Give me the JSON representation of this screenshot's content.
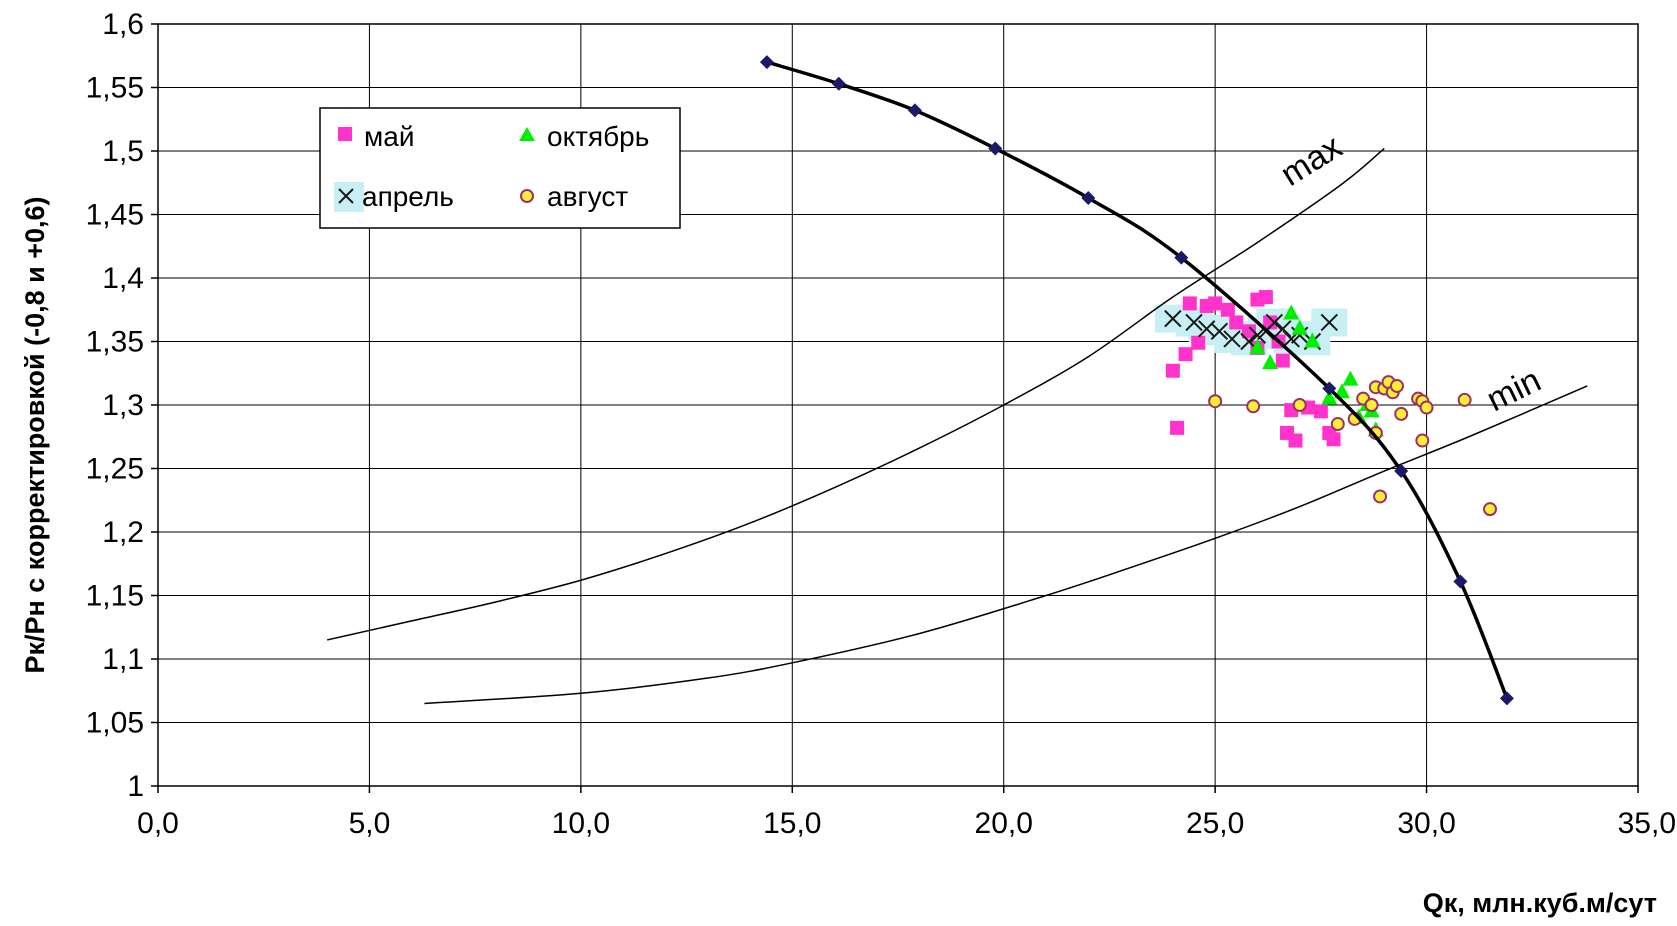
{
  "chart_data": {
    "type": "scatter",
    "xlabel": "Qк, млн.куб.м/сут",
    "ylabel": "Рк/Рн с корректировкой (-0,8 и +0,6)",
    "xlim": [
      0,
      35
    ],
    "ylim": [
      1,
      1.6
    ],
    "x_ticks": [
      "0,0",
      "5,0",
      "10,0",
      "15,0",
      "20,0",
      "25,0",
      "30,0",
      "35,0"
    ],
    "x_tick_values": [
      0,
      5,
      10,
      15,
      20,
      25,
      30,
      35
    ],
    "y_ticks": [
      "1",
      "1,05",
      "1,1",
      "1,15",
      "1,2",
      "1,25",
      "1,3",
      "1,35",
      "1,4",
      "1,45",
      "1,5",
      "1,55",
      "1,6"
    ],
    "y_tick_values": [
      1,
      1.05,
      1.1,
      1.15,
      1.2,
      1.25,
      1.3,
      1.35,
      1.4,
      1.45,
      1.5,
      1.55,
      1.6
    ],
    "grid": true,
    "legend_position": "top-left",
    "colors": {
      "may": "#ff33cc",
      "october": "#00ee00",
      "april_marker": "#1a1a1a",
      "april_band": "#c8f0f4",
      "august_fill": "#ffee33",
      "august_edge": "#993366",
      "curve": "#000000",
      "diamond": "#1a1a66"
    },
    "series": [
      {
        "name": "май",
        "marker": "square",
        "color": "#ff33cc",
        "points": [
          [
            24.0,
            1.327
          ],
          [
            24.1,
            1.282
          ],
          [
            24.3,
            1.34
          ],
          [
            24.4,
            1.38
          ],
          [
            24.6,
            1.349
          ],
          [
            24.8,
            1.378
          ],
          [
            25.0,
            1.38
          ],
          [
            25.3,
            1.375
          ],
          [
            25.5,
            1.365
          ],
          [
            25.8,
            1.358
          ],
          [
            26.0,
            1.383
          ],
          [
            26.2,
            1.385
          ],
          [
            26.3,
            1.365
          ],
          [
            26.0,
            1.345
          ],
          [
            26.5,
            1.35
          ],
          [
            26.6,
            1.335
          ],
          [
            26.7,
            1.278
          ],
          [
            26.8,
            1.296
          ],
          [
            26.9,
            1.272
          ],
          [
            27.2,
            1.298
          ],
          [
            27.5,
            1.295
          ],
          [
            27.7,
            1.278
          ],
          [
            27.8,
            1.273
          ]
        ]
      },
      {
        "name": "октябрь",
        "marker": "triangle",
        "color": "#00ee00",
        "points": [
          [
            26.0,
            1.345
          ],
          [
            26.3,
            1.333
          ],
          [
            26.8,
            1.372
          ],
          [
            27.0,
            1.36
          ],
          [
            27.3,
            1.35
          ],
          [
            27.7,
            1.305
          ],
          [
            28.0,
            1.31
          ],
          [
            28.2,
            1.32
          ],
          [
            28.4,
            1.29
          ],
          [
            28.6,
            1.3
          ],
          [
            28.8,
            1.28
          ],
          [
            28.7,
            1.295
          ]
        ]
      },
      {
        "name": "апрель",
        "marker": "x",
        "color": "#1a1a1a",
        "points": [
          [
            24.0,
            1.368
          ],
          [
            24.5,
            1.365
          ],
          [
            24.8,
            1.36
          ],
          [
            25.1,
            1.358
          ],
          [
            25.4,
            1.352
          ],
          [
            25.8,
            1.35
          ],
          [
            26.0,
            1.355
          ],
          [
            26.2,
            1.358
          ],
          [
            26.4,
            1.365
          ],
          [
            26.6,
            1.36
          ],
          [
            26.8,
            1.352
          ],
          [
            27.0,
            1.355
          ],
          [
            27.3,
            1.35
          ],
          [
            27.7,
            1.365
          ]
        ]
      },
      {
        "name": "август",
        "marker": "circle",
        "color": "#ffee33",
        "points": [
          [
            25.0,
            1.303
          ],
          [
            25.9,
            1.299
          ],
          [
            27.0,
            1.3
          ],
          [
            27.9,
            1.285
          ],
          [
            28.3,
            1.289
          ],
          [
            28.5,
            1.305
          ],
          [
            28.7,
            1.3
          ],
          [
            28.8,
            1.314
          ],
          [
            28.9,
            1.228
          ],
          [
            29.0,
            1.313
          ],
          [
            29.1,
            1.318
          ],
          [
            29.2,
            1.31
          ],
          [
            29.3,
            1.315
          ],
          [
            29.4,
            1.293
          ],
          [
            29.8,
            1.305
          ],
          [
            29.9,
            1.303
          ],
          [
            30.0,
            1.298
          ],
          [
            29.9,
            1.272
          ],
          [
            30.9,
            1.304
          ],
          [
            31.5,
            1.218
          ],
          [
            28.8,
            1.278
          ]
        ]
      }
    ],
    "characteristic_curve": {
      "marker": "diamond",
      "points": [
        [
          14.4,
          1.57
        ],
        [
          16.1,
          1.553
        ],
        [
          17.9,
          1.532
        ],
        [
          19.8,
          1.502
        ],
        [
          22.0,
          1.463
        ],
        [
          24.2,
          1.416
        ],
        [
          27.7,
          1.313
        ],
        [
          29.4,
          1.248
        ],
        [
          30.8,
          1.161
        ],
        [
          31.9,
          1.069
        ]
      ]
    },
    "max_curve": {
      "label": "max",
      "points": [
        [
          4.0,
          1.115
        ],
        [
          6.0,
          1.13
        ],
        [
          8.0,
          1.145
        ],
        [
          10.0,
          1.162
        ],
        [
          12.0,
          1.183
        ],
        [
          14.0,
          1.207
        ],
        [
          16.0,
          1.235
        ],
        [
          18.0,
          1.266
        ],
        [
          20.0,
          1.3
        ],
        [
          22.0,
          1.338
        ],
        [
          24.0,
          1.385
        ],
        [
          26.0,
          1.428
        ],
        [
          28.0,
          1.474
        ],
        [
          29.0,
          1.502
        ]
      ]
    },
    "min_curve": {
      "label": "min",
      "points": [
        [
          6.3,
          1.065
        ],
        [
          10.0,
          1.073
        ],
        [
          13.0,
          1.085
        ],
        [
          15.0,
          1.097
        ],
        [
          18.0,
          1.12
        ],
        [
          21.0,
          1.15
        ],
        [
          23.0,
          1.172
        ],
        [
          25.0,
          1.195
        ],
        [
          27.0,
          1.22
        ],
        [
          29.0,
          1.248
        ],
        [
          31.0,
          1.275
        ],
        [
          33.8,
          1.315
        ]
      ]
    }
  }
}
